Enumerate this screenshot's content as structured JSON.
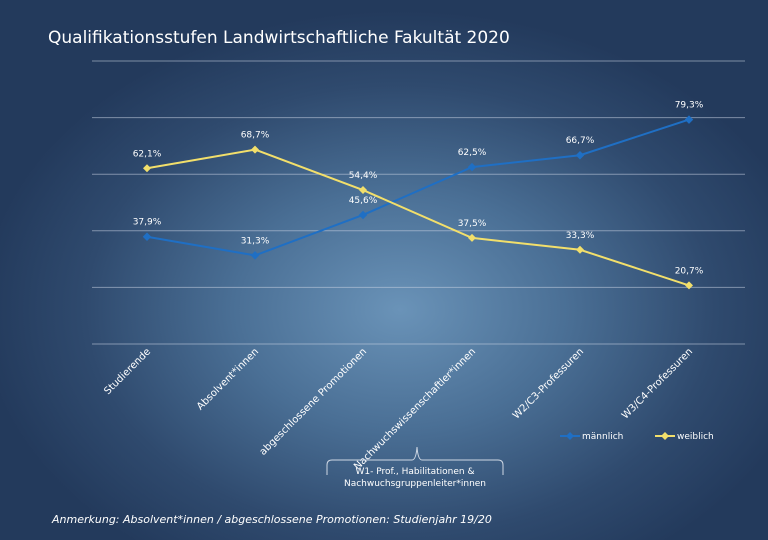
{
  "chart_data": {
    "type": "line",
    "title": "Qualifikationsstufen Landwirtschaftliche Fakultät 2020",
    "categories": [
      "Studierende",
      "Absolvent*innen",
      "abgeschlossene Promotionen",
      "Nachwuchswissenschaftler*innen",
      "W2/C3-Professuren",
      "W3/C4-Professuren"
    ],
    "series": [
      {
        "name": "männlich",
        "values": [
          37.9,
          31.3,
          45.6,
          62.5,
          66.7,
          79.3
        ],
        "labels": [
          "37,9%",
          "31,3%",
          "45,6%",
          "62,5%",
          "66,7%",
          "79,3%"
        ],
        "color": "#1f6fc4",
        "marker": "circle"
      },
      {
        "name": "weiblich",
        "values": [
          62.1,
          68.7,
          54.4,
          37.5,
          33.3,
          20.7
        ],
        "labels": [
          "62,1%",
          "68,7%",
          "54,4%",
          "37,5%",
          "33,3%",
          "20,7%"
        ],
        "color": "#f2df6b",
        "marker": "diamond"
      }
    ],
    "ylim": [
      0,
      100
    ],
    "yticks": [
      0,
      20,
      40,
      60,
      80,
      100
    ],
    "grid": true,
    "legend": "bottom-right",
    "annotation": {
      "text_line1": "W1- Prof., Habilitationen &",
      "text_line2": "Nachwuchsgruppenleiter*innen",
      "category": "Nachwuchswissenschaftler*innen"
    }
  },
  "footnote": "Anmerkung: Absolvent*innen / abgeschlossene Promotionen: Studienjahr 19/20"
}
